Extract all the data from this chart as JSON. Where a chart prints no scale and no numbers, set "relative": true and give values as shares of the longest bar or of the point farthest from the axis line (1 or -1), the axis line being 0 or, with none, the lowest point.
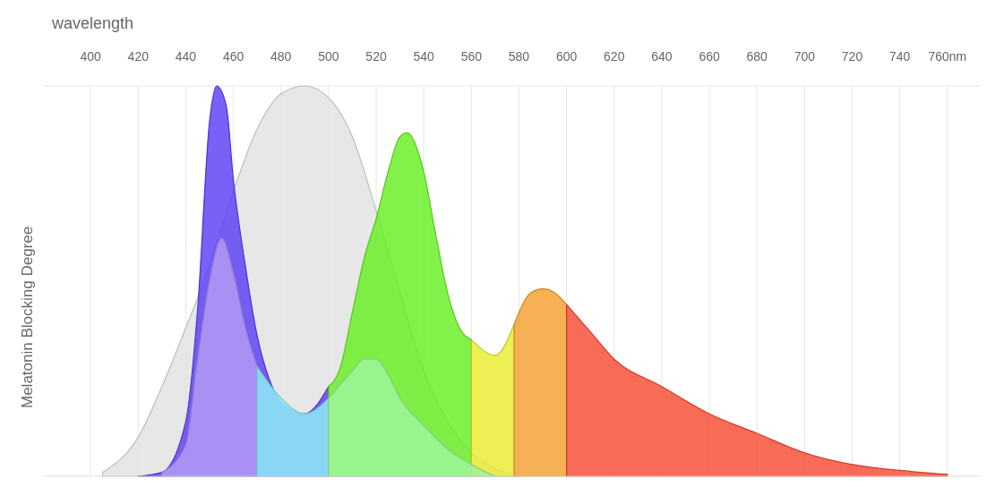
{
  "chart_data": {
    "type": "area",
    "xlabel": "wavelength",
    "ylabel": "Melatonin Blocking Degree",
    "relative": true,
    "grid": "x",
    "xlim": [
      380,
      774
    ],
    "xticks": [
      400,
      420,
      440,
      460,
      480,
      500,
      520,
      540,
      560,
      580,
      600,
      620,
      640,
      660,
      680,
      700,
      720,
      740,
      {
        "value": 760,
        "label": "760nm"
      }
    ],
    "series": [
      {
        "color": "#e2e2e2",
        "x": [
          405,
          420,
          430,
          440,
          450,
          460,
          470,
          480,
          490,
          500,
          510,
          520,
          530,
          540,
          550,
          560,
          570,
          580
        ],
        "values": [
          0.01,
          0.1,
          0.23,
          0.38,
          0.54,
          0.73,
          0.89,
          0.98,
          1,
          0.97,
          0.87,
          0.68,
          0.47,
          0.27,
          0.14,
          0.06,
          0.02,
          0
        ]
      },
      {
        "color": "#5b3df5",
        "x": [
          420,
          430,
          440,
          445,
          450,
          453,
          457,
          460,
          465,
          470,
          475,
          480,
          490,
          500
        ],
        "values": [
          0,
          0.01,
          0.14,
          0.43,
          0.91,
          1,
          0.95,
          0.76,
          0.54,
          0.36,
          0.25,
          0.19,
          0.16,
          0.23
        ]
      },
      {
        "color": "#66ee22",
        "x": [
          500,
          505,
          510,
          515,
          520,
          525,
          530,
          533,
          540,
          545,
          550,
          555,
          560
        ],
        "values": [
          0.23,
          0.28,
          0.42,
          0.56,
          0.66,
          0.78,
          0.87,
          0.88,
          0.78,
          0.62,
          0.47,
          0.38,
          0.35
        ]
      },
      {
        "color": "#eaea30",
        "x": [
          560,
          570,
          578
        ],
        "values": [
          0.35,
          0.31,
          0.39
        ]
      },
      {
        "color": "#f5a030",
        "x": [
          578,
          585,
          590,
          595,
          600
        ],
        "values": [
          0.39,
          0.47,
          0.48,
          0.47,
          0.44
        ]
      },
      {
        "color": "#f64a32",
        "x": [
          600,
          610,
          620,
          640,
          660,
          680,
          700,
          720,
          740,
          760
        ],
        "values": [
          0.44,
          0.37,
          0.3,
          0.23,
          0.16,
          0.11,
          0.06,
          0.03,
          0.015,
          0.005
        ]
      },
      {
        "color": "#b59cf5",
        "x": [
          430,
          440,
          445,
          450,
          455,
          460,
          465,
          470
        ],
        "values": [
          0.01,
          0.08,
          0.3,
          0.5,
          0.61,
          0.52,
          0.38,
          0.28
        ]
      },
      {
        "color": "#8ff2f5",
        "x": [
          470,
          480,
          490,
          500
        ],
        "values": [
          0.28,
          0.2,
          0.16,
          0.2
        ]
      },
      {
        "color": "#9ef59c",
        "x": [
          500,
          510,
          515,
          520,
          525,
          530,
          540,
          550,
          560,
          570
        ],
        "values": [
          0.2,
          0.27,
          0.3,
          0.3,
          0.26,
          0.2,
          0.13,
          0.07,
          0.03,
          0
        ]
      }
    ]
  }
}
